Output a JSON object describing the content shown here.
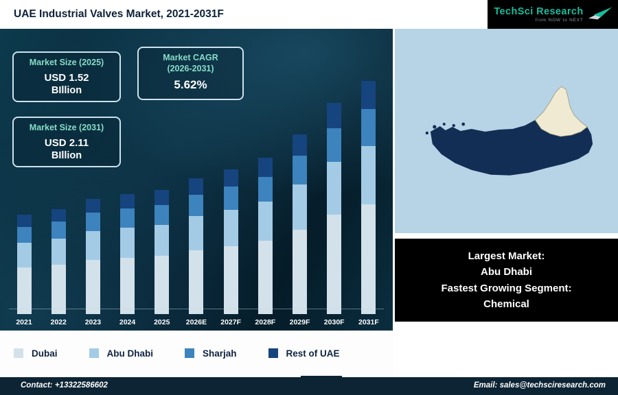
{
  "header": {
    "title": "UAE Industrial Valves Market, 2021-2031F",
    "logo": {
      "brand": "TechSci Research",
      "tagline": "from NOW to NEXT"
    }
  },
  "stats": {
    "market_size_2025": {
      "title": "Market Size (2025)",
      "value": "USD 1.52",
      "unit": "BIllion"
    },
    "market_cagr": {
      "title_line1": "Market CAGR",
      "title_line2": "(2026-2031)",
      "value": "5.62%"
    },
    "market_size_2031": {
      "title": "Market Size (2031)",
      "value": "USD 2.11",
      "unit": "BIllion"
    }
  },
  "map_callout": {
    "line1": "Largest Market:",
    "line2": "Abu Dhabi",
    "line3": "Fastest Growing Segment:",
    "line4": "Chemical"
  },
  "chart_data": {
    "type": "bar",
    "stacked": true,
    "title": "UAE Industrial Valves Market, 2021-2031F",
    "xlabel": "",
    "ylabel": "",
    "y_axis_visible": false,
    "ylim": [
      0,
      360
    ],
    "note": "No y-axis shown in figure; series values are estimated bar-segment heights in pixels",
    "categories": [
      "2021",
      "2022",
      "2023",
      "2024",
      "2025",
      "2026E",
      "2027F",
      "2028F",
      "2029F",
      "2030F",
      "2031F"
    ],
    "series": [
      {
        "name": "Dubai",
        "color": "#d3e1ea",
        "values": [
          68,
          72,
          79,
          82,
          85,
          93,
          99,
          107,
          123,
          145,
          160
        ]
      },
      {
        "name": "Abu Dhabi",
        "color": "#a3cbe5",
        "values": [
          36,
          38,
          42,
          44,
          45,
          50,
          53,
          57,
          66,
          77,
          85
        ]
      },
      {
        "name": "Sharjah",
        "color": "#3d83bd",
        "values": [
          23,
          25,
          27,
          28,
          29,
          31,
          34,
          36,
          42,
          49,
          54
        ]
      },
      {
        "name": "Rest of UAE",
        "color": "#16447e",
        "values": [
          18,
          18,
          20,
          21,
          22,
          24,
          25,
          28,
          31,
          37,
          41
        ]
      }
    ],
    "legend_position": "bottom"
  },
  "legend": {
    "items": [
      {
        "label": "Dubai",
        "color": "#d3e1ea"
      },
      {
        "label": "Abu Dhabi",
        "color": "#a3cbe5"
      },
      {
        "label": "Sharjah",
        "color": "#3d83bd"
      },
      {
        "label": "Rest of UAE",
        "color": "#16447e"
      }
    ]
  },
  "colors": {
    "accent_teal": "#17bd9e",
    "panel_dark": "#082536",
    "map_land": "#122e55",
    "map_highlight": "#f0ead3",
    "map_water": "#b7d3e6",
    "footer_bg": "#0d2434"
  },
  "footer": {
    "contact": "Contact: +13322586602",
    "email": "Email: sales@techsciresearch.com"
  }
}
